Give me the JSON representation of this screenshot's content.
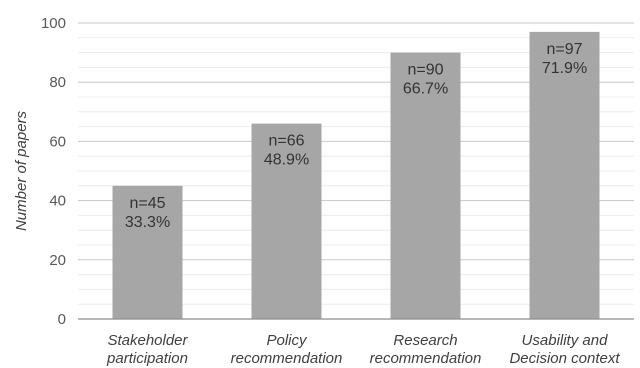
{
  "chart_data": {
    "type": "bar",
    "ylabel": "Number of papers",
    "ylim": [
      0,
      100
    ],
    "yticks": [
      0,
      20,
      40,
      60,
      80,
      100
    ],
    "minor_gridlines": true,
    "categories": [
      [
        "Stakeholder",
        "participation"
      ],
      [
        "Policy",
        "recommendation"
      ],
      [
        "Research",
        "recommendation"
      ],
      [
        "Usability and",
        "Decision context"
      ]
    ],
    "values": [
      45,
      66,
      90,
      97
    ],
    "data_labels": [
      [
        "n=45",
        "33.3%"
      ],
      [
        "n=66",
        "48.9%"
      ],
      [
        "n=90",
        "66.7%"
      ],
      [
        "n=97",
        "71.9%"
      ]
    ],
    "colors": {
      "bar": "#a6a6a6",
      "major_grid": "#c8c8c8",
      "minor_grid": "#ececec",
      "axis": "#8c8c8c"
    }
  }
}
